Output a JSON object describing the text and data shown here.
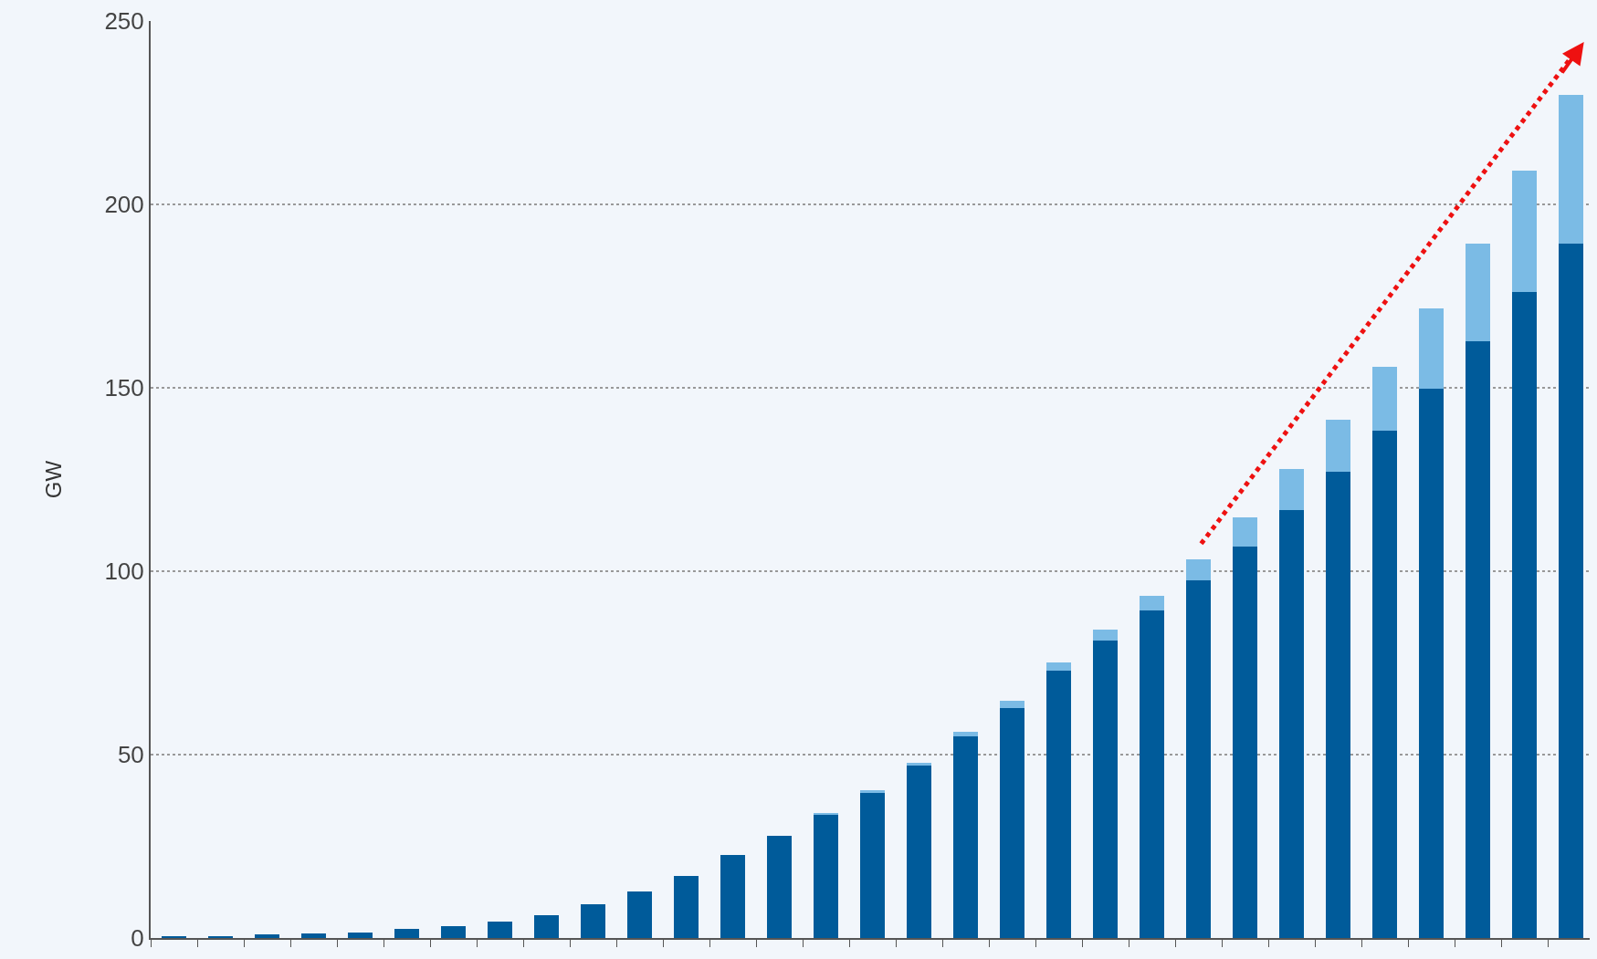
{
  "chart_data": {
    "type": "bar",
    "ylabel": "GW",
    "stacked": true,
    "categories": [
      null,
      null,
      null,
      null,
      null,
      null,
      null,
      null,
      null,
      null,
      null,
      null,
      null,
      null,
      null,
      null,
      null,
      null,
      null,
      null,
      null,
      null,
      null,
      null,
      null,
      null,
      null,
      null,
      null,
      null,
      null
    ],
    "series": [
      {
        "color": "#005b9a",
        "values": [
          0.3,
          0.5,
          1,
          1.2,
          1.6,
          2.5,
          3.3,
          4.6,
          6.3,
          9.3,
          12.6,
          17,
          22.7,
          27.9,
          33.6,
          39.6,
          47,
          54.9,
          62.6,
          73,
          81.1,
          89.3,
          97.5,
          106.6,
          116.7,
          127,
          138.3,
          149.7,
          162.6,
          176,
          189.3
        ]
      },
      {
        "color": "#7bbbe5",
        "values": [
          0,
          0,
          0,
          0,
          0,
          0,
          0,
          0,
          0,
          0,
          0,
          0,
          0,
          0,
          0.6,
          0.6,
          0.8,
          1.4,
          2.2,
          2.1,
          3.1,
          4.1,
          5.8,
          8.2,
          11.2,
          14.3,
          17.4,
          21.9,
          26.7,
          33.3,
          40.5
        ]
      }
    ],
    "ylim": [
      0,
      250
    ],
    "yticks": [
      0,
      50,
      100,
      150,
      200,
      250
    ],
    "grid": "y"
  }
}
